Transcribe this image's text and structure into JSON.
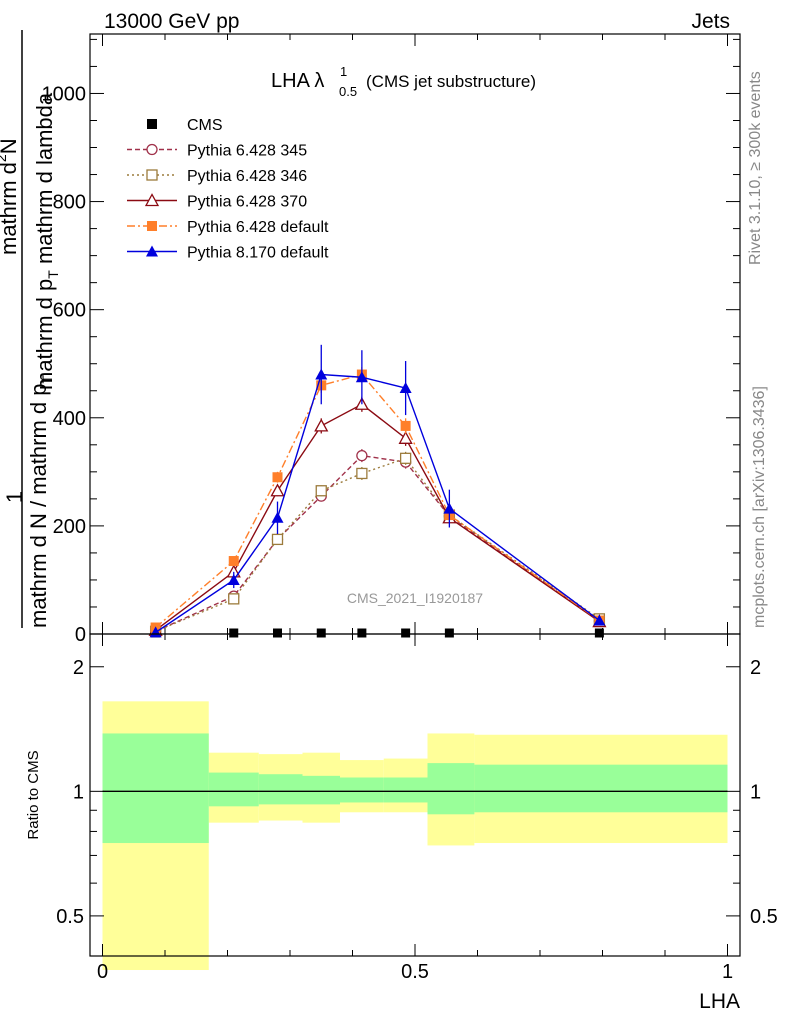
{
  "header": {
    "left": "13000 GeV pp",
    "right": "Jets"
  },
  "side_labels": {
    "rivet": "Rivet 3.1.10, ≥ 300k events",
    "mcplots": "mcplots.cern.ch [arXiv:1306.3436]"
  },
  "chart_data": [
    {
      "type": "line",
      "title_main": "LHA λ",
      "title_sup": "1",
      "title_sub": "0.5",
      "title_note": "(CMS jet substructure)",
      "watermark": "CMS_2021_I1920187",
      "ylabel_top": "1",
      "ylabel_line1": "mathrm d N / mathrm d p",
      "ylabel_line2": "T",
      "ylabel_num1": "mathrm d",
      "ylabel_num2": "2",
      "ylabel_num3": "N",
      "ylabel_den1": "mathrm d p",
      "ylabel_den2": "T",
      "ylabel_den3": " mathrm d lambda",
      "xlim": [
        -0.02,
        1.02
      ],
      "ylim": [
        0,
        1110
      ],
      "yticks": [
        0,
        200,
        400,
        600,
        800,
        1000
      ],
      "ytick_labels": [
        "0",
        "200",
        "400",
        "600",
        "800",
        "1000"
      ],
      "legend_position": "top-left",
      "series": [
        {
          "name": "CMS",
          "color": "#000000",
          "marker": "square-filled",
          "dash": "none",
          "x": [
            0.085,
            0.21,
            0.28,
            0.35,
            0.415,
            0.485,
            0.555,
            0.795
          ],
          "y": [
            0,
            0,
            0,
            0,
            0,
            0,
            0,
            0
          ]
        },
        {
          "name": "Pythia 6.428 345",
          "color": "#a0314a",
          "marker": "circle-open",
          "dash": "5,3",
          "x": [
            0.085,
            0.21,
            0.28,
            0.35,
            0.415,
            0.485,
            0.555,
            0.795
          ],
          "y": [
            5,
            70,
            175,
            255,
            330,
            318,
            218,
            24
          ],
          "err": [
            2,
            6,
            8,
            10,
            12,
            12,
            10,
            4
          ]
        },
        {
          "name": "Pythia 6.428 346",
          "color": "#9c7b3c",
          "marker": "square-open",
          "dash": "2,3",
          "x": [
            0.085,
            0.21,
            0.28,
            0.35,
            0.415,
            0.485,
            0.555,
            0.795
          ],
          "y": [
            5,
            65,
            175,
            265,
            297,
            325,
            220,
            28
          ],
          "err": [
            2,
            6,
            8,
            10,
            12,
            12,
            10,
            4
          ]
        },
        {
          "name": "Pythia 6.428 370",
          "color": "#8b0a12",
          "marker": "triangle-open",
          "dash": "none",
          "x": [
            0.085,
            0.21,
            0.28,
            0.35,
            0.415,
            0.485,
            0.555,
            0.795
          ],
          "y": [
            7,
            115,
            265,
            385,
            425,
            362,
            215,
            23
          ],
          "err": [
            2,
            8,
            10,
            14,
            14,
            14,
            10,
            4
          ]
        },
        {
          "name": "Pythia 6.428 default",
          "color": "#ff7f2a",
          "marker": "square-filled",
          "dash": "8,3,2,3",
          "x": [
            0.085,
            0.21,
            0.28,
            0.35,
            0.415,
            0.485,
            0.555,
            0.795
          ],
          "y": [
            12,
            135,
            290,
            460,
            480,
            385,
            220,
            25
          ],
          "err": [
            2,
            8,
            10,
            14,
            14,
            14,
            10,
            4
          ]
        },
        {
          "name": "Pythia 8.170 default",
          "color": "#0000dd",
          "marker": "triangle-filled",
          "dash": "none",
          "x": [
            0.085,
            0.21,
            0.28,
            0.35,
            0.415,
            0.485,
            0.555,
            0.795
          ],
          "y": [
            3,
            100,
            215,
            480,
            475,
            455,
            232,
            25
          ],
          "err": [
            2,
            15,
            30,
            55,
            50,
            50,
            35,
            5
          ]
        }
      ]
    },
    {
      "type": "area",
      "ylabel": "Ratio to CMS",
      "xlabel": "LHA",
      "scale": "log",
      "ylim": [
        0.4,
        2.4
      ],
      "yticks": [
        0.5,
        1,
        2
      ],
      "ytick_labels": [
        "0.5",
        "1",
        "2"
      ],
      "xticks": [
        0,
        0.5,
        1
      ],
      "xtick_labels": [
        "0",
        "0.5",
        "1"
      ],
      "reference": 1,
      "bins": [
        {
          "x0": 0.0,
          "x1": 0.17,
          "inner": [
            0.75,
            1.38
          ],
          "outer": [
            0.37,
            1.65
          ]
        },
        {
          "x0": 0.17,
          "x1": 0.25,
          "inner": [
            0.92,
            1.11
          ],
          "outer": [
            0.84,
            1.24
          ]
        },
        {
          "x0": 0.25,
          "x1": 0.32,
          "inner": [
            0.93,
            1.1
          ],
          "outer": [
            0.85,
            1.23
          ]
        },
        {
          "x0": 0.32,
          "x1": 0.38,
          "inner": [
            0.93,
            1.09
          ],
          "outer": [
            0.84,
            1.24
          ]
        },
        {
          "x0": 0.38,
          "x1": 0.45,
          "inner": [
            0.94,
            1.08
          ],
          "outer": [
            0.89,
            1.19
          ]
        },
        {
          "x0": 0.45,
          "x1": 0.52,
          "inner": [
            0.94,
            1.08
          ],
          "outer": [
            0.89,
            1.2
          ]
        },
        {
          "x0": 0.52,
          "x1": 0.595,
          "inner": [
            0.88,
            1.17
          ],
          "outer": [
            0.74,
            1.38
          ]
        },
        {
          "x0": 0.595,
          "x1": 1.0,
          "inner": [
            0.89,
            1.16
          ],
          "outer": [
            0.75,
            1.37
          ]
        }
      ],
      "colors": {
        "outer": "#ffff99",
        "inner": "#99ff99"
      }
    }
  ]
}
